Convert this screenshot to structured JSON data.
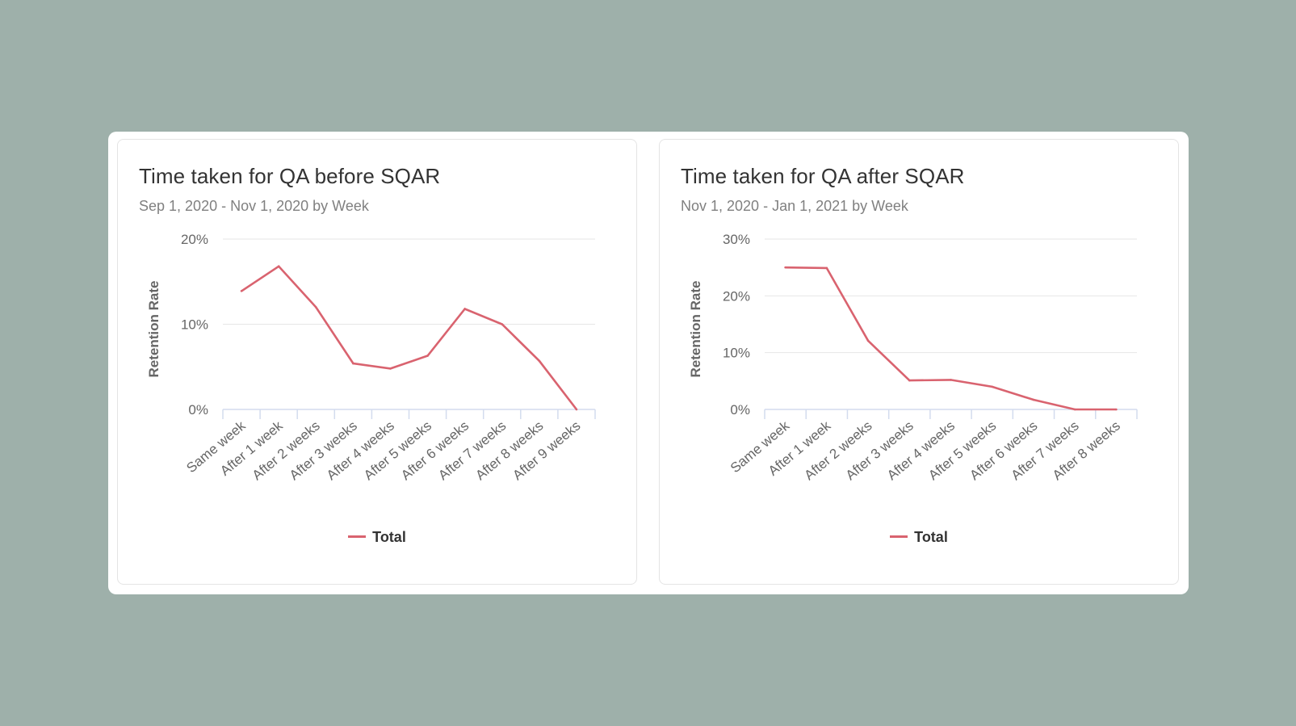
{
  "colors": {
    "background": "#9eb0aa",
    "line": "#d9636f",
    "grid": "#e6e6e6",
    "axis": "#d3dcee"
  },
  "chart_data": [
    {
      "type": "line",
      "title": "Time taken for QA before SQAR",
      "subtitle": "Sep 1, 2020 - Nov 1, 2020 by Week",
      "xlabel": "",
      "ylabel": "Retention Rate",
      "categories": [
        "Same week",
        "After 1 week",
        "After 2 weeks",
        "After 3 weeks",
        "After 4 weeks",
        "After 5 weeks",
        "After 6 weeks",
        "After 7 weeks",
        "After 8 weeks",
        "After 9 weeks"
      ],
      "series": [
        {
          "name": "Total",
          "values": [
            13.9,
            16.8,
            12.0,
            5.4,
            4.8,
            6.3,
            11.8,
            10.0,
            5.7,
            0.0
          ]
        }
      ],
      "ylim": [
        0,
        20
      ],
      "yticks": [
        0,
        10,
        20
      ],
      "ytick_labels": [
        "0%",
        "10%",
        "20%"
      ],
      "grid": true,
      "legend": "bottom-center"
    },
    {
      "type": "line",
      "title": "Time taken for QA after SQAR",
      "subtitle": "Nov 1, 2020 - Jan 1, 2021 by Week",
      "xlabel": "",
      "ylabel": "Retention Rate",
      "categories": [
        "Same week",
        "After 1 week",
        "After 2 weeks",
        "After 3 weeks",
        "After 4 weeks",
        "After 5 weeks",
        "After 6 weeks",
        "After 7 weeks",
        "After 8 weeks"
      ],
      "series": [
        {
          "name": "Total",
          "values": [
            25.0,
            24.9,
            12.1,
            5.1,
            5.2,
            4.0,
            1.7,
            0.0,
            0.0
          ]
        }
      ],
      "ylim": [
        0,
        30
      ],
      "yticks": [
        0,
        10,
        20,
        30
      ],
      "ytick_labels": [
        "0%",
        "10%",
        "20%",
        "30%"
      ],
      "grid": true,
      "legend": "bottom-center"
    }
  ]
}
